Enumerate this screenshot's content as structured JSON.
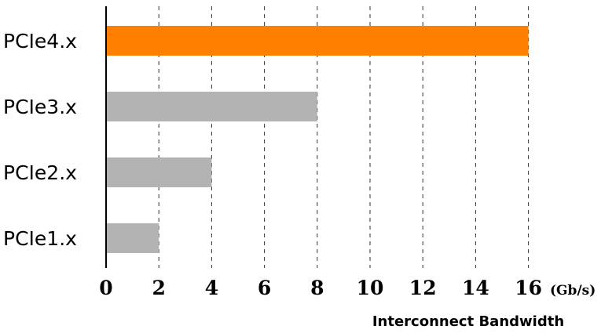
{
  "chart_data": {
    "type": "bar",
    "orientation": "horizontal",
    "categories": [
      "PCIe4.x",
      "PCIe3.x",
      "PCIe2.x",
      "PCIe1.x"
    ],
    "values": [
      16,
      8,
      4,
      2
    ],
    "bar_colors": [
      "#ff8000",
      "#b3b3b3",
      "#b3b3b3",
      "#b3b3b3"
    ],
    "highlight_color": "#ff8000",
    "base_color": "#b3b3b3",
    "title": "",
    "xlabel": "Interconnect Bandwidth",
    "x_unit": "(Gb/s)",
    "ylabel": "",
    "xlim": [
      0,
      16
    ],
    "xticks": [
      0,
      2,
      4,
      6,
      8,
      10,
      12,
      14,
      16
    ],
    "grid": "vertical dashed",
    "legend": "none"
  }
}
